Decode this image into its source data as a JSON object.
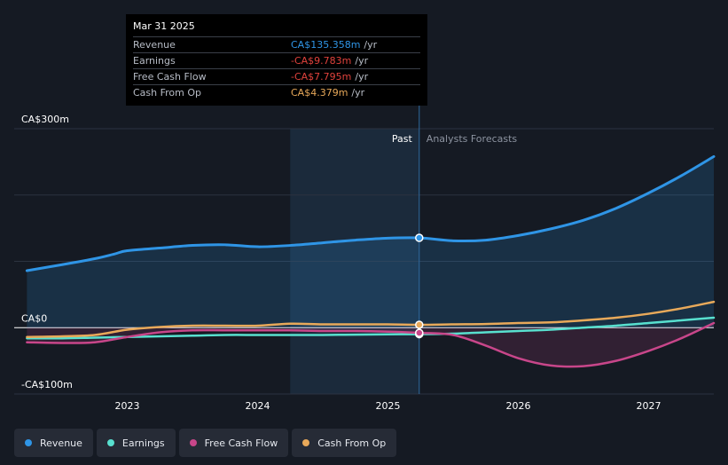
{
  "tooltip": {
    "date": "Mar 31 2025",
    "rows": [
      {
        "label": "Revenue",
        "value": "CA$135.358m",
        "unit": "/yr",
        "color": "#2f95e6"
      },
      {
        "label": "Earnings",
        "value": "-CA$9.783m",
        "unit": "/yr",
        "color": "#e0423c"
      },
      {
        "label": "Free Cash Flow",
        "value": "-CA$7.795m",
        "unit": "/yr",
        "color": "#e0423c"
      },
      {
        "label": "Cash From Op",
        "value": "CA$4.379m",
        "unit": "/yr",
        "color": "#e8a95a"
      }
    ]
  },
  "labels": {
    "past": "Past",
    "forecast": "Analysts Forecasts"
  },
  "legend": [
    {
      "label": "Revenue",
      "color": "#2f95e6"
    },
    {
      "label": "Earnings",
      "color": "#58e0cf"
    },
    {
      "label": "Free Cash Flow",
      "color": "#c8468a"
    },
    {
      "label": "Cash From Op",
      "color": "#e8a95a"
    }
  ],
  "chart_data": {
    "type": "line",
    "ylim": [
      -100,
      300
    ],
    "xlim": [
      2022.35,
      2027.5
    ],
    "y_ticks": [
      {
        "value": 300,
        "label": "CA$300m"
      },
      {
        "value": 0,
        "label": "CA$0"
      },
      {
        "value": -100,
        "label": "-CA$100m"
      }
    ],
    "x_ticks": [
      {
        "value": 2023,
        "label": "2023"
      },
      {
        "value": 2024,
        "label": "2024"
      },
      {
        "value": 2025,
        "label": "2025"
      },
      {
        "value": 2026,
        "label": "2026"
      },
      {
        "value": 2027,
        "label": "2027"
      }
    ],
    "past_start": 2024.25,
    "past_end": 2025.24,
    "series": [
      {
        "name": "Revenue",
        "color": "#2f95e6",
        "fill": true,
        "x": [
          2022.23,
          2022.5,
          2022.75,
          2022.9,
          2023.0,
          2023.25,
          2023.5,
          2023.75,
          2024.0,
          2024.25,
          2024.5,
          2024.75,
          2025.0,
          2025.24,
          2025.5,
          2025.75,
          2026.0,
          2026.25,
          2026.5,
          2026.75,
          2027.0,
          2027.25,
          2027.5
        ],
        "values": [
          86,
          95,
          104,
          111,
          116,
          120,
          124,
          125,
          122,
          124,
          128,
          132,
          135,
          135.4,
          131,
          132,
          139,
          149,
          162,
          180,
          203,
          229,
          258
        ]
      },
      {
        "name": "Earnings",
        "color": "#58e0cf",
        "fill": false,
        "x": [
          2022.23,
          2022.5,
          2022.75,
          2023.0,
          2023.25,
          2023.5,
          2023.75,
          2024.0,
          2024.25,
          2024.5,
          2024.75,
          2025.0,
          2025.24,
          2025.5,
          2025.75,
          2026.0,
          2026.25,
          2026.5,
          2026.75,
          2027.0,
          2027.25,
          2027.5
        ],
        "values": [
          -16,
          -16,
          -15,
          -14,
          -13,
          -12,
          -11,
          -11,
          -11,
          -11,
          -10.5,
          -10,
          -9.8,
          -9,
          -7,
          -5,
          -3,
          0,
          3,
          7,
          11,
          15
        ]
      },
      {
        "name": "Free Cash Flow",
        "color": "#c8468a",
        "fill": true,
        "x": [
          2022.23,
          2022.5,
          2022.75,
          2023.0,
          2023.25,
          2023.5,
          2023.75,
          2024.0,
          2024.25,
          2024.5,
          2024.75,
          2025.0,
          2025.24,
          2025.5,
          2025.75,
          2026.0,
          2026.25,
          2026.5,
          2026.75,
          2027.0,
          2027.25,
          2027.5
        ],
        "values": [
          -22,
          -23,
          -22,
          -14,
          -7,
          -4,
          -4,
          -4,
          -4,
          -5,
          -5,
          -6,
          -7.8,
          -11,
          -27,
          -46,
          -57,
          -58,
          -50,
          -35,
          -16,
          7
        ]
      },
      {
        "name": "Cash From Op",
        "color": "#e8a95a",
        "fill": false,
        "x": [
          2022.23,
          2022.5,
          2022.75,
          2023.0,
          2023.25,
          2023.5,
          2023.75,
          2024.0,
          2024.25,
          2024.5,
          2024.75,
          2025.0,
          2025.24,
          2025.5,
          2025.75,
          2026.0,
          2026.25,
          2026.5,
          2026.75,
          2027.0,
          2027.25,
          2027.5
        ],
        "values": [
          -14,
          -13,
          -11,
          -3,
          1,
          3,
          3,
          3,
          6,
          5,
          5,
          5,
          4.4,
          5,
          5.5,
          7,
          8,
          11,
          15,
          21,
          29,
          39
        ]
      }
    ]
  }
}
